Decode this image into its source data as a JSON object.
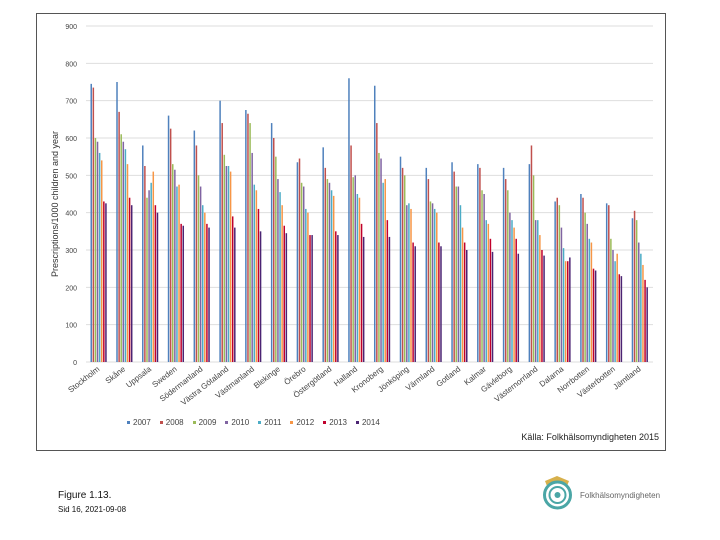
{
  "chart_data": {
    "type": "bar",
    "title": "",
    "xlabel": "",
    "ylabel": "Prescriptions/1000 children and year",
    "ylim": [
      0,
      900
    ],
    "yticks": [
      0,
      100,
      200,
      300,
      400,
      500,
      600,
      700,
      800,
      900
    ],
    "grid": true,
    "legend_position": "bottom",
    "categories": [
      "Stockholm",
      "Skåne",
      "Uppsala",
      "Sweden",
      "Södermanland",
      "Västra Götaland",
      "Västmanland",
      "Blekinge",
      "Örebro",
      "Östergötland",
      "Halland",
      "Kronoberg",
      "Jönköping",
      "Värmland",
      "Gotland",
      "Kalmar",
      "Gävleborg",
      "Västernorrland",
      "Dalarna",
      "Norrbotten",
      "Västerbotten",
      "Jämtland"
    ],
    "series": [
      {
        "name": "2007",
        "color": "#4f81bd",
        "values": [
          745,
          750,
          580,
          660,
          620,
          700,
          675,
          640,
          535,
          575,
          760,
          740,
          550,
          520,
          535,
          530,
          520,
          530,
          430,
          450,
          425,
          385
        ]
      },
      {
        "name": "2008",
        "color": "#c0504d",
        "values": [
          735,
          670,
          525,
          625,
          580,
          640,
          665,
          600,
          545,
          520,
          580,
          640,
          520,
          490,
          510,
          520,
          490,
          580,
          440,
          440,
          420,
          405
        ]
      },
      {
        "name": "2009",
        "color": "#9bbb59",
        "values": [
          600,
          610,
          440,
          530,
          500,
          555,
          640,
          550,
          480,
          490,
          495,
          560,
          500,
          430,
          470,
          460,
          460,
          500,
          420,
          400,
          330,
          380
        ]
      },
      {
        "name": "2010",
        "color": "#8064a2",
        "values": [
          590,
          590,
          460,
          515,
          470,
          525,
          560,
          490,
          470,
          480,
          500,
          545,
          420,
          425,
          470,
          450,
          400,
          380,
          360,
          370,
          300,
          320
        ]
      },
      {
        "name": "2011",
        "color": "#4bacc6",
        "values": [
          560,
          570,
          480,
          470,
          420,
          525,
          475,
          455,
          410,
          460,
          450,
          480,
          425,
          410,
          420,
          380,
          380,
          380,
          305,
          330,
          270,
          290
        ]
      },
      {
        "name": "2012",
        "color": "#f79646",
        "values": [
          540,
          530,
          510,
          475,
          400,
          510,
          460,
          420,
          400,
          445,
          440,
          490,
          410,
          400,
          360,
          370,
          360,
          340,
          270,
          320,
          290,
          260
        ]
      },
      {
        "name": "2013",
        "color": "#c0002c",
        "values": [
          430,
          440,
          420,
          370,
          370,
          390,
          410,
          365,
          340,
          350,
          370,
          380,
          320,
          320,
          320,
          330,
          330,
          300,
          270,
          250,
          235,
          220
        ]
      },
      {
        "name": "2014",
        "color": "#4b2473",
        "values": [
          425,
          420,
          400,
          365,
          360,
          360,
          350,
          345,
          340,
          340,
          335,
          335,
          310,
          310,
          300,
          295,
          290,
          285,
          280,
          245,
          230,
          200
        ]
      }
    ]
  },
  "legend": {
    "entries": [
      "2007",
      "2008",
      "2009",
      "2010",
      "2011",
      "2012",
      "2013",
      "2014"
    ]
  },
  "source": "Källa: Folkhälsomyndigheten 2015",
  "figure_label": "Figure 1.13.",
  "page_label": "Sid 16, 2021-09-08",
  "logo": {
    "text": "Folkhälsomyndigheten",
    "name": "folkhalsomyndigheten-logo"
  }
}
